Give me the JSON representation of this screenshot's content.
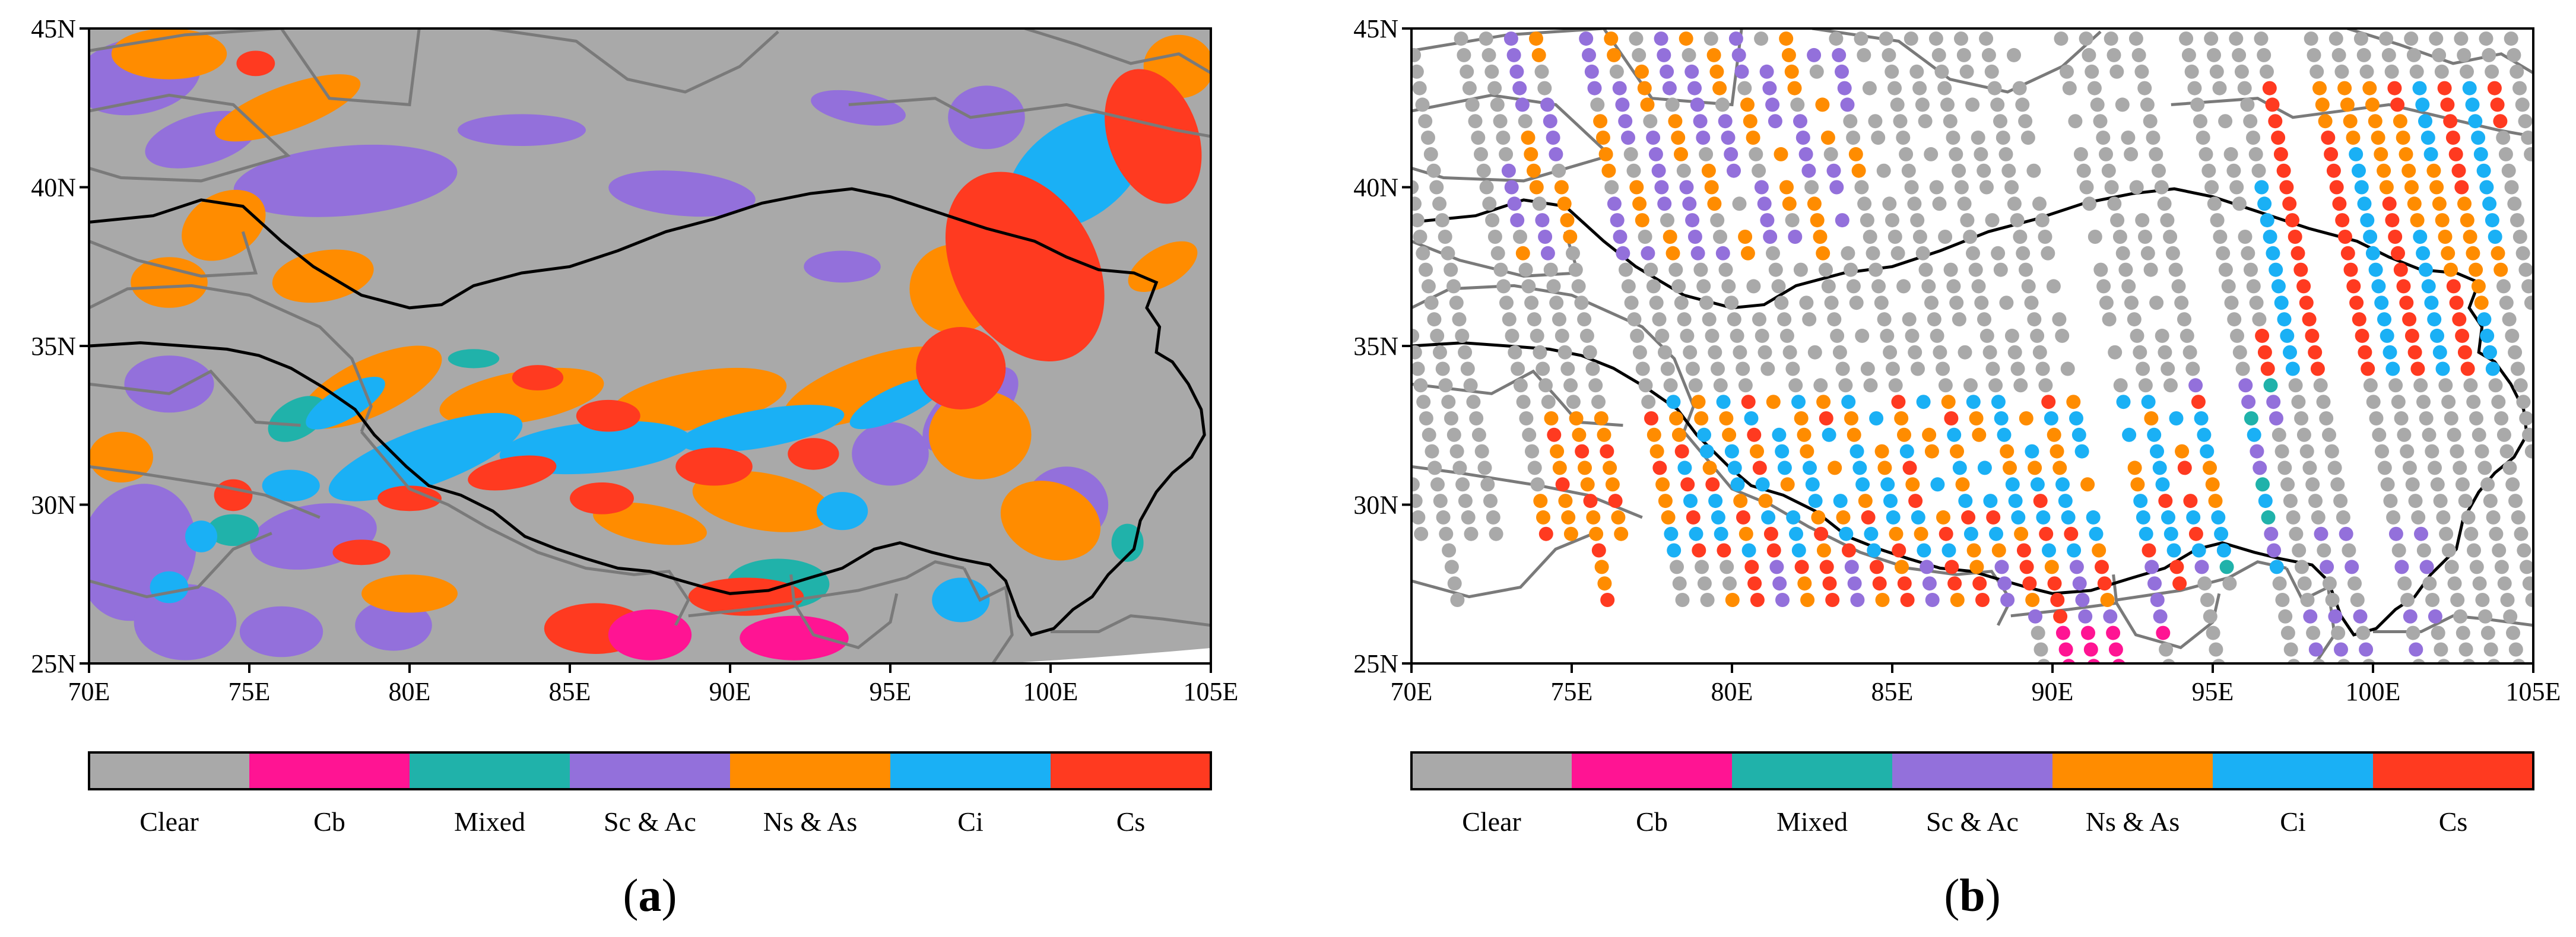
{
  "panels": [
    {
      "id": "a",
      "label": "a",
      "type": "gridded cloud-type field",
      "y_ticks": [
        "45N",
        "40N",
        "35N",
        "30N",
        "25N"
      ],
      "x_ticks": [
        "70E",
        "75E",
        "80E",
        "85E",
        "90E",
        "95E",
        "100E",
        "105E"
      ]
    },
    {
      "id": "b",
      "label": "b",
      "type": "satellite track points",
      "y_ticks": [
        "45N",
        "40N",
        "35N",
        "30N",
        "25N"
      ],
      "x_ticks": [
        "70E",
        "75E",
        "80E",
        "85E",
        "90E",
        "95E",
        "100E",
        "105E"
      ]
    }
  ],
  "extent": {
    "lon": [
      70,
      105
    ],
    "lat": [
      25,
      45
    ]
  },
  "legend": [
    {
      "name": "Clear",
      "color": "#a9a9a9"
    },
    {
      "name": "Cb",
      "color": "#ff1493"
    },
    {
      "name": "Mixed",
      "color": "#20b2aa"
    },
    {
      "name": "Sc & Ac",
      "color": "#9370db"
    },
    {
      "name": "Ns & As",
      "color": "#ff8c00"
    },
    {
      "name": "Ci",
      "color": "#1ab0f5"
    },
    {
      "name": "Cs",
      "color": "#ff3a20"
    }
  ]
}
